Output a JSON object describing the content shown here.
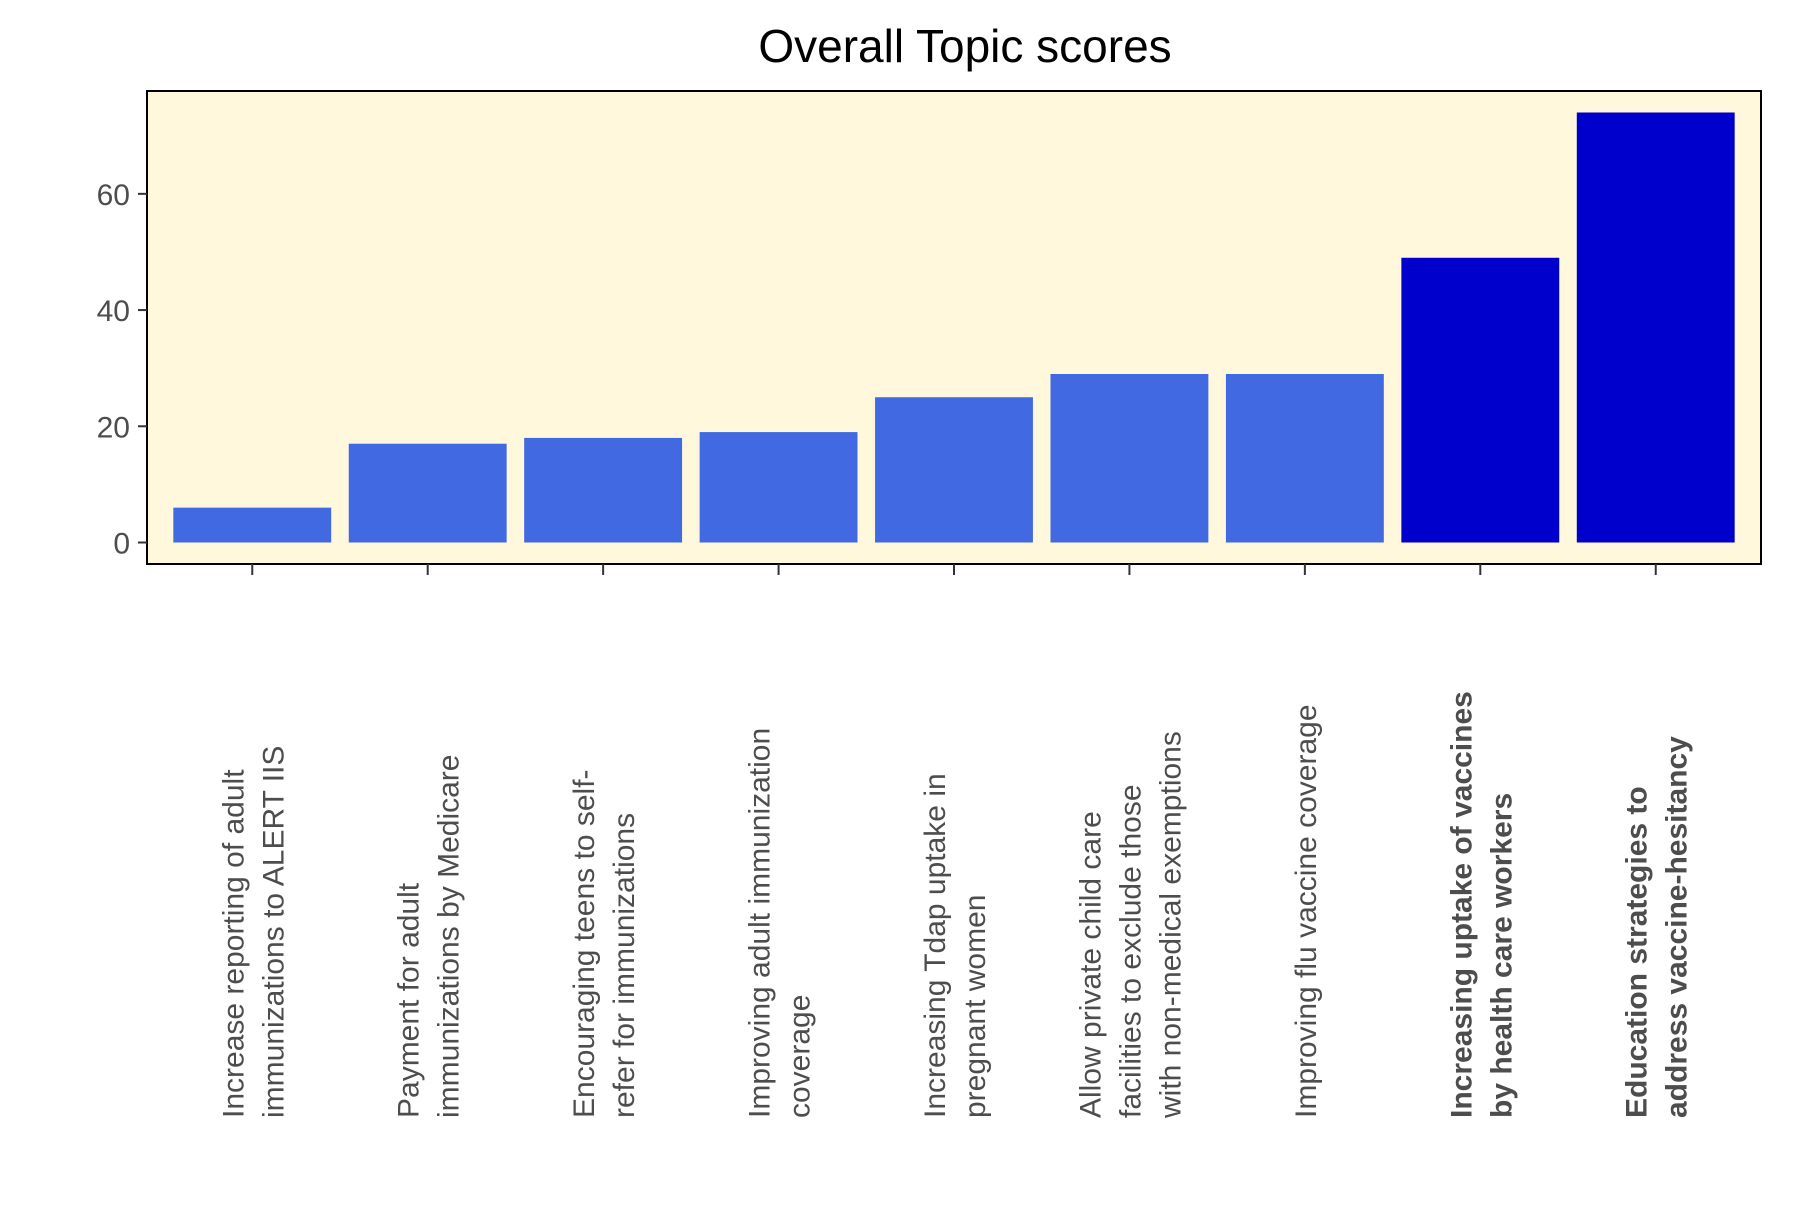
{
  "chart_data": {
    "type": "bar",
    "title": "Overall Topic scores",
    "xlabel": "",
    "ylabel": "",
    "ylim": [
      -3.7,
      77.7
    ],
    "yticks": [
      0,
      20,
      40,
      60
    ],
    "categories": [
      [
        "Increase reporting of adult",
        "immunizations to ALERT IIS"
      ],
      [
        "Payment for adult",
        "immunizations by Medicare"
      ],
      [
        "Encouraging teens to self-",
        "refer for immunizations"
      ],
      [
        "Improving adult immunization",
        "coverage"
      ],
      [
        "Increasing Tdap uptake in",
        "pregnant women"
      ],
      [
        "Allow private child care",
        "facilities to exclude those",
        "with non-medical exemptions"
      ],
      [
        "Improving flu vaccine coverage"
      ],
      [
        "Increasing uptake of vaccines",
        "by health care workers"
      ],
      [
        "Education strategies to",
        "address vaccine-hesitancy"
      ]
    ],
    "values": [
      6,
      17,
      18,
      19,
      25,
      29,
      29,
      49,
      74
    ],
    "highlighted": [
      false,
      false,
      false,
      false,
      false,
      false,
      false,
      true,
      true
    ],
    "colors": {
      "bar": "#4169e1",
      "bar_highlight": "#0000cd",
      "panel_background": "#fff8dc",
      "axis": "#000000"
    },
    "grid": false,
    "legend": "none"
  }
}
